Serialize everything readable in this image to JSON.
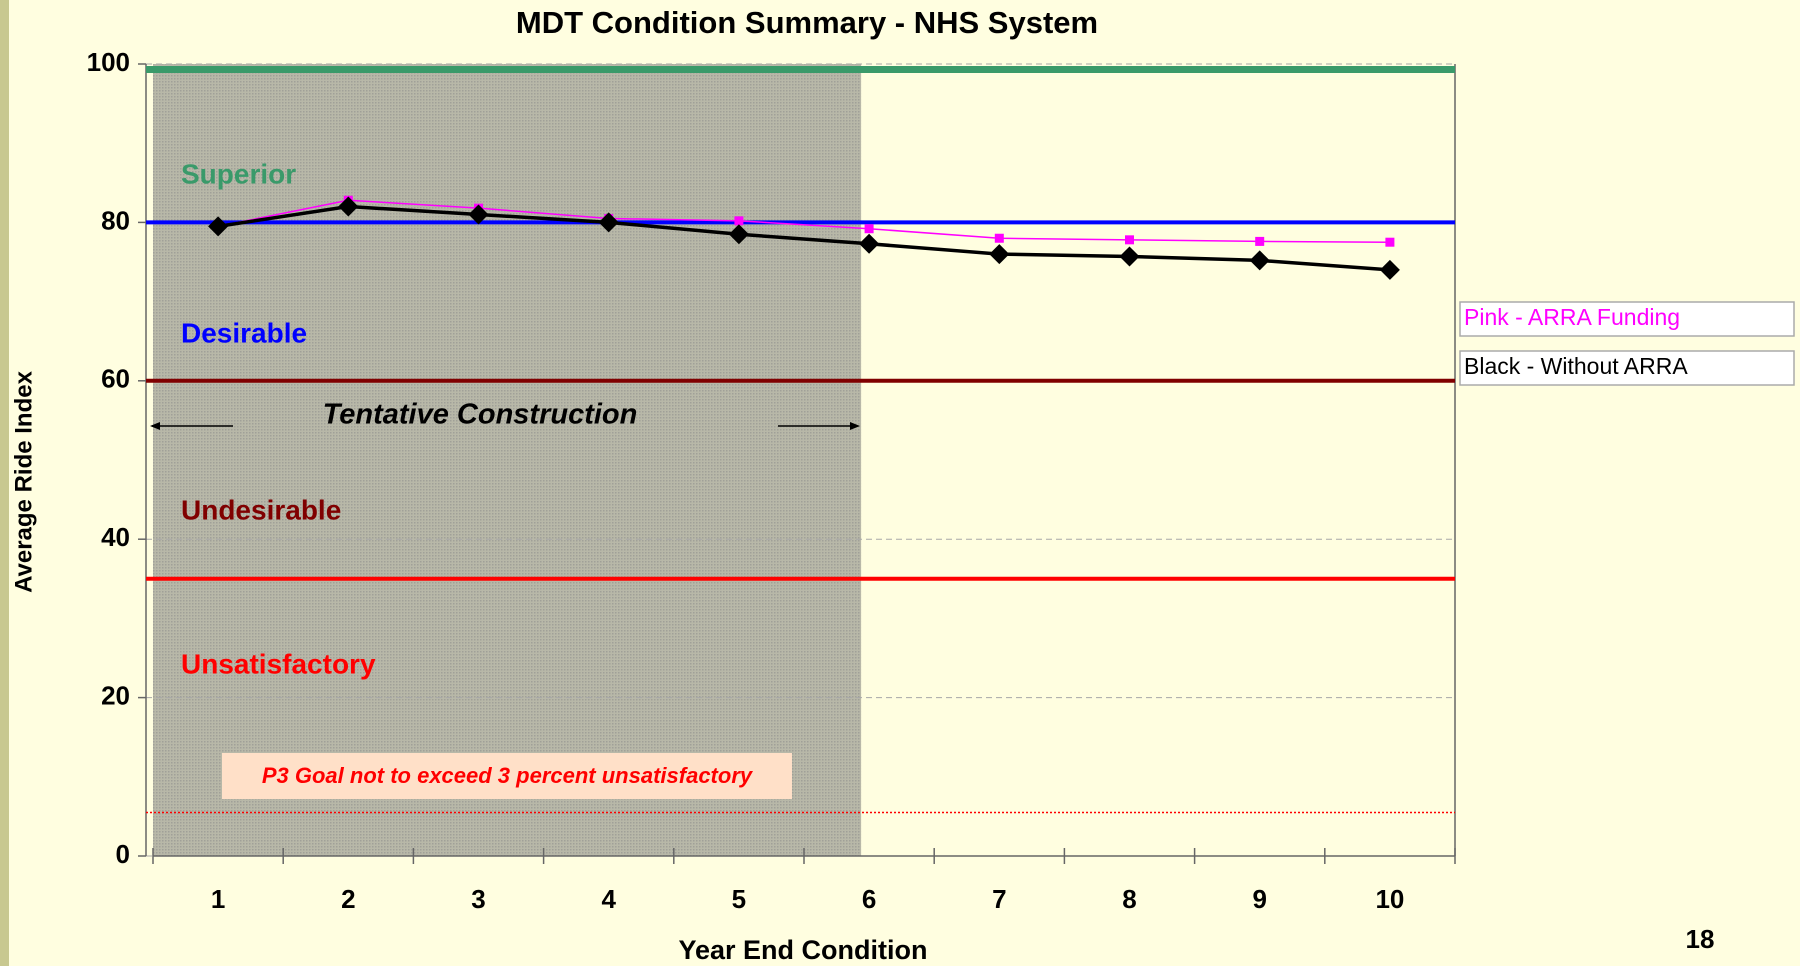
{
  "chart_data": {
    "type": "line",
    "title": "MDT Condition Summary - NHS System",
    "x_label": "Year End Condition",
    "y_label": "Average Ride Index",
    "categories": [
      "1",
      "2",
      "3",
      "4",
      "5",
      "6",
      "7",
      "8",
      "9",
      "10"
    ],
    "series": [
      {
        "name": "Pink - ARRA Funding",
        "color": "#ff00ff",
        "values": [
          79.5,
          82.8,
          81.8,
          80.5,
          80.2,
          79.2,
          78,
          77.8,
          77.6,
          77.5
        ]
      },
      {
        "name": "Black - Without ARRA",
        "color": "#000000",
        "values": [
          79.5,
          82,
          81,
          80,
          78.5,
          77.3,
          76,
          75.7,
          75.2,
          74
        ]
      }
    ],
    "ylim": [
      0,
      100
    ],
    "yticks": [
      0,
      20,
      40,
      60,
      80,
      100
    ],
    "grid": true,
    "reference_lines": [
      {
        "value": 99.3,
        "color": "#3a9a6a"
      },
      {
        "value": 80,
        "color": "#0000ff"
      },
      {
        "value": 60,
        "color": "#800000"
      },
      {
        "value": 35,
        "color": "#ff0000"
      },
      {
        "value": 5.5,
        "color": "#ff0000",
        "style": "dotted"
      }
    ],
    "zones": [
      {
        "label": "Superior",
        "color": "#3a9a6a"
      },
      {
        "label": "Desirable",
        "color": "#0000ff"
      },
      {
        "label": "Undesirable",
        "color": "#800000"
      },
      {
        "label": "Unsatisfactory",
        "color": "#ff0000"
      }
    ],
    "annotations": [
      "Tentative Construction",
      "P3 Goal not to exceed 3 percent unsatisfactory"
    ],
    "page_number": "18"
  }
}
